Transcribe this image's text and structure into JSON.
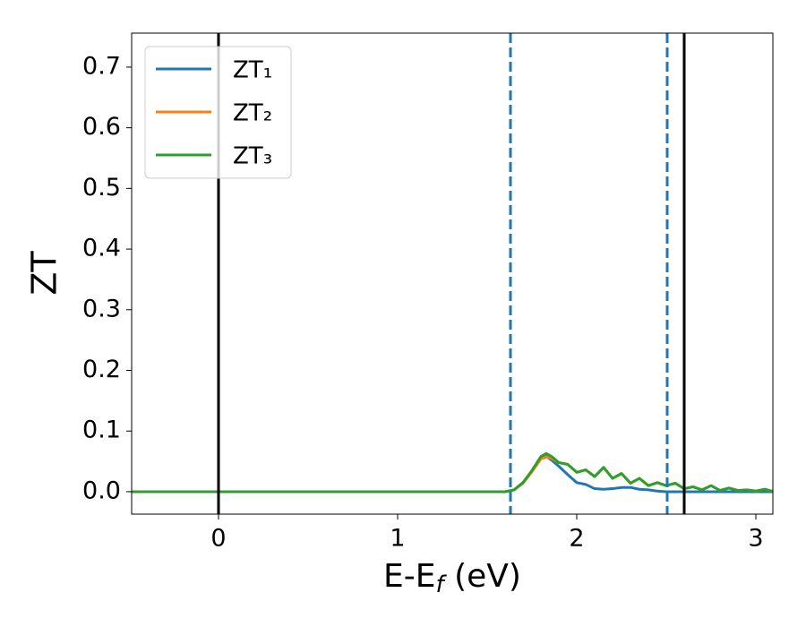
{
  "chart_data": {
    "type": "line",
    "x_label_parts": [
      "E-E",
      "f",
      " (eV)"
    ],
    "y_label": "ZT",
    "x": [
      -0.49,
      1.5,
      1.6,
      1.65,
      1.7,
      1.75,
      1.8,
      1.83,
      1.86,
      1.9,
      1.95,
      2.0,
      2.05,
      2.1,
      2.15,
      2.2,
      2.25,
      2.3,
      2.35,
      2.4,
      2.45,
      2.5,
      2.55,
      2.6,
      2.65,
      2.7,
      2.75,
      2.8,
      2.85,
      2.9,
      2.95,
      3.0,
      3.05,
      3.1
    ],
    "series": [
      {
        "name": "ZT₁",
        "color": "#1f77b4",
        "values": [
          0,
          0,
          0,
          0.003,
          0.015,
          0.034,
          0.055,
          0.058,
          0.052,
          0.042,
          0.028,
          0.015,
          0.012,
          0.005,
          0.004,
          0.005,
          0.007,
          0.007,
          0.004,
          0.003,
          0.001,
          0,
          0,
          0,
          0,
          0,
          0,
          0,
          0,
          0,
          0,
          0,
          0,
          0
        ]
      },
      {
        "name": "ZT₂",
        "color": "#ff7f0e",
        "values": [
          0,
          0,
          0,
          0.003,
          0.014,
          0.033,
          0.054,
          0.057,
          0.055,
          0.048,
          0.045,
          0.032,
          0.036,
          0.025,
          0.04,
          0.022,
          0.03,
          0.014,
          0.022,
          0.01,
          0.015,
          0.01,
          0.014,
          0.005,
          0.008,
          0.003,
          0.01,
          0.002,
          0.006,
          0.002,
          0.003,
          0.001,
          0.004,
          0
        ]
      },
      {
        "name": "ZT₃",
        "color": "#2ca02c",
        "values": [
          0,
          0,
          0,
          0.003,
          0.015,
          0.035,
          0.058,
          0.063,
          0.058,
          0.048,
          0.045,
          0.032,
          0.036,
          0.025,
          0.04,
          0.022,
          0.03,
          0.014,
          0.022,
          0.01,
          0.015,
          0.01,
          0.014,
          0.005,
          0.008,
          0.003,
          0.01,
          0.002,
          0.006,
          0.002,
          0.003,
          0.001,
          0.004,
          0
        ]
      }
    ],
    "vlines": [
      {
        "x": 0,
        "color": "#000000",
        "dashed": false
      },
      {
        "x": 2.6,
        "color": "#000000",
        "dashed": false
      },
      {
        "x": 1.63,
        "color": "#1f77b4",
        "dashed": true
      },
      {
        "x": 2.505,
        "color": "#1f77b4",
        "dashed": true
      }
    ],
    "xlim": [
      -0.485,
      3.095
    ],
    "ylim": [
      -0.037,
      0.756
    ],
    "xticks": [
      0,
      1,
      2,
      3
    ],
    "yticks": [
      {
        "value": 0,
        "label": "0.0"
      },
      0.1,
      0.2,
      0.3,
      0.4,
      0.5,
      0.6,
      0.7
    ],
    "legend": "upper-left"
  }
}
